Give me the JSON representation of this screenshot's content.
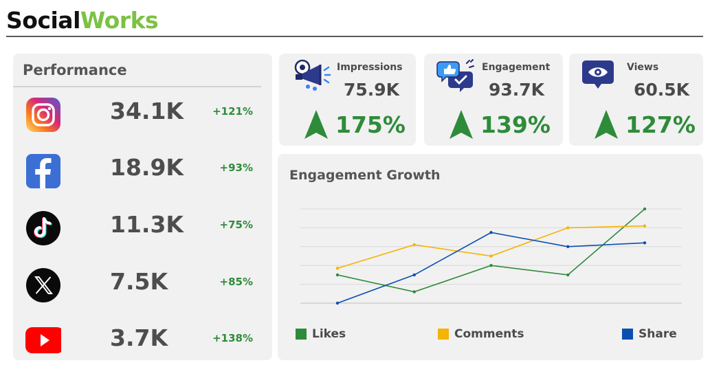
{
  "brand": {
    "part1": "Social",
    "part2": "Works"
  },
  "performance": {
    "title": "Performance",
    "rows": [
      {
        "platform": "Instagram",
        "icon": "instagram-icon",
        "value": "34.1K",
        "change": "+121%"
      },
      {
        "platform": "Facebook",
        "icon": "facebook-icon",
        "value": "18.9K",
        "change": "+93%"
      },
      {
        "platform": "TikTok",
        "icon": "tiktok-icon",
        "value": "11.3K",
        "change": "+75%"
      },
      {
        "platform": "X",
        "icon": "x-icon",
        "value": "7.5K",
        "change": "+85%"
      },
      {
        "platform": "YouTube",
        "icon": "youtube-icon",
        "value": "3.7K",
        "change": "+138%"
      }
    ]
  },
  "kpis": [
    {
      "label": "Impressions",
      "value": "75.9K",
      "change": "175%",
      "icon": "megaphone-icon"
    },
    {
      "label": "Engagement",
      "value": "93.7K",
      "change": "139%",
      "icon": "chat-bubbles-icon"
    },
    {
      "label": "Views",
      "value": "60.5K",
      "change": "127%",
      "icon": "eye-icon"
    }
  ],
  "colors": {
    "brand_green": "#7cc242",
    "positive": "#2e8b3a",
    "likes": "#2e8b3a",
    "comments": "#f4b400",
    "share": "#0b4fb0"
  },
  "chart_data": {
    "type": "line",
    "title": "Engagement Growth",
    "x": [
      1,
      2,
      3,
      4,
      5
    ],
    "ylim": [
      0,
      10
    ],
    "grid": true,
    "legend_position": "bottom",
    "series": [
      {
        "name": "Likes",
        "color": "#2e8b3a",
        "values": [
          3.0,
          1.2,
          4.0,
          3.0,
          10.0
        ]
      },
      {
        "name": "Comments",
        "color": "#f4b400",
        "values": [
          3.7,
          6.2,
          5.0,
          8.0,
          8.2
        ]
      },
      {
        "name": "Share",
        "color": "#0b4fb0",
        "values": [
          0.0,
          3.0,
          7.5,
          6.0,
          6.4
        ]
      }
    ]
  }
}
